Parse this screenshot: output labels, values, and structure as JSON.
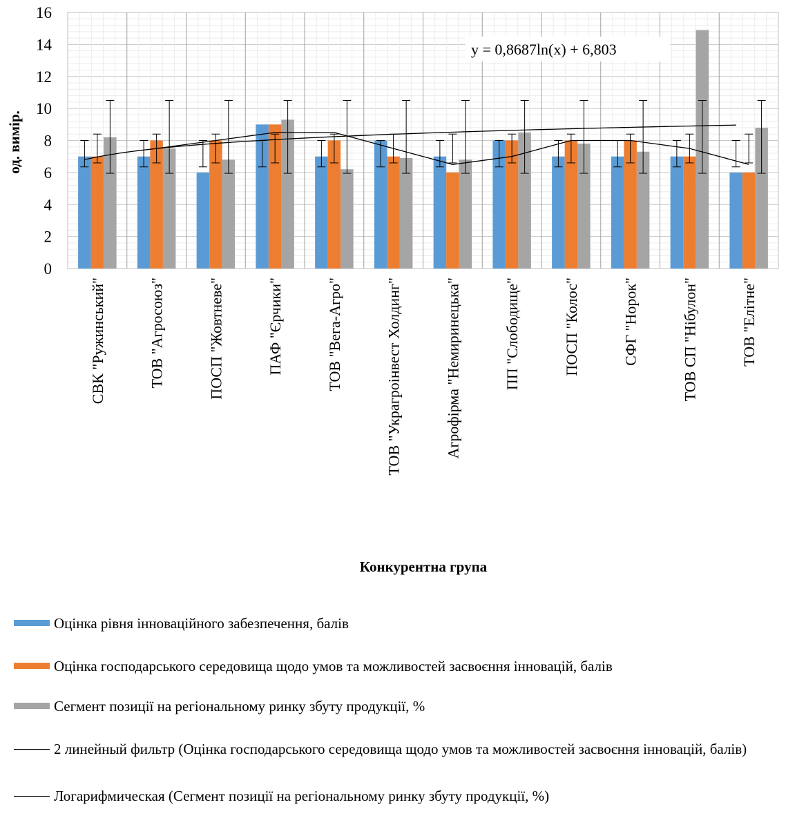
{
  "chart_data": {
    "type": "bar",
    "xlabel": "Конкурентна група",
    "ylabel": "од. вимір.",
    "ylim": [
      0,
      16
    ],
    "yticks": [
      "0",
      "2",
      "4",
      "6",
      "8",
      "10",
      "12",
      "14",
      "16"
    ],
    "grid": true,
    "categories": [
      "СВК \"Ружинський\"",
      "ТОВ \"Агросоюз\"",
      "ПОСП \"Жовтневе\"",
      "ПАФ \"Єрчики\"",
      "ТОВ \"Вега-Агро\"",
      "ТОВ \"Украгроінвест Холдинг\"",
      "Агрофірма \"Немиринецька\"",
      "ПП \"Слободище\"",
      "ПОСП \"Колос\"",
      "СФГ \"Норок\"",
      "ТОВ СП \"Нібулон\"",
      "ТОВ \"Елітне\""
    ],
    "series": [
      {
        "name": "Оцінка рівня інноваційного забезпечення, балів",
        "color": "#5b9bd5",
        "values": [
          7,
          7,
          6,
          9,
          7,
          8,
          7,
          8,
          7,
          7,
          7,
          6
        ],
        "error_bar": [
          6.35,
          8.0
        ]
      },
      {
        "name": "Оцінка господарського середовища щодо умов та можливостей засвоєння інновацій, балів",
        "color": "#ed7d31",
        "values": [
          7,
          8,
          8,
          9,
          8,
          7,
          6,
          8,
          8,
          8,
          7,
          6
        ],
        "error_bar": [
          6.6,
          8.4
        ]
      },
      {
        "name": "Сегмент позиції на регіональному ринку збуту продукції, %",
        "color": "#a5a5a5",
        "values": [
          8.2,
          7.5,
          6.8,
          9.3,
          6.2,
          6.9,
          6.8,
          8.5,
          7.8,
          7.3,
          14.9,
          8.8
        ],
        "error_bar": [
          5.95,
          10.5
        ]
      }
    ],
    "trendlines": [
      {
        "name": "2 линейный фильтр (Оцінка господарського середовища щодо умов та можливостей засвоєння інновацій, балів)",
        "color": "#000000",
        "values": [
          null,
          7.5,
          8,
          8.5,
          8.5,
          7.5,
          6.5,
          7,
          8,
          8,
          7.5,
          6.5
        ]
      },
      {
        "name": "Логарифмическая (Сегмент позиції на регіональному ринку збуту продукції, %)",
        "color": "#000000",
        "equation": "y = 0,8687ln(x) + 6,803"
      }
    ]
  }
}
